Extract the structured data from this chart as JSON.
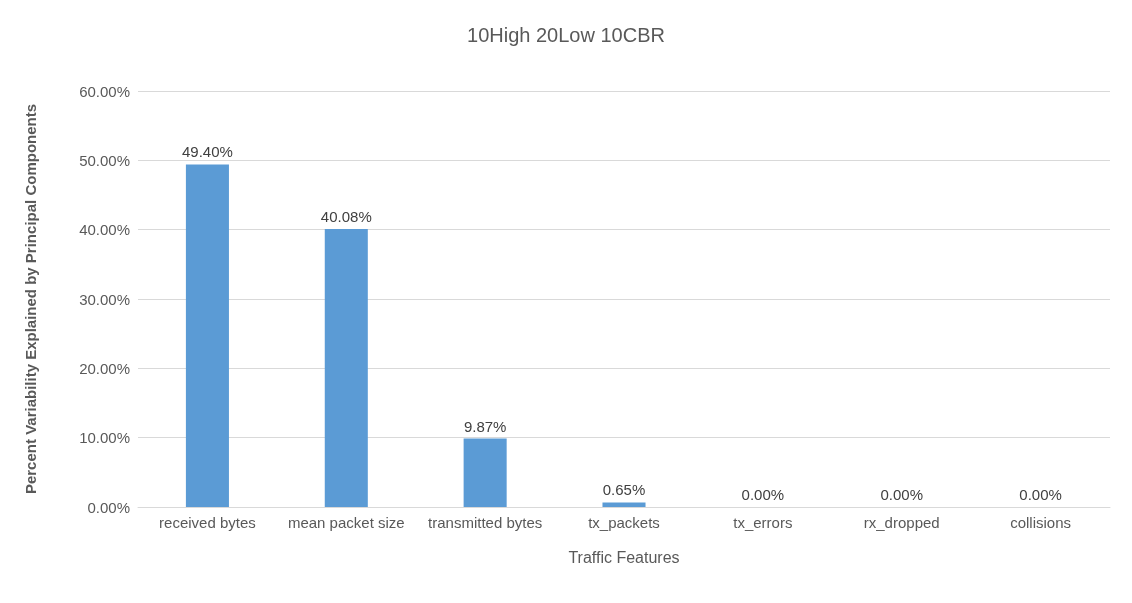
{
  "chart_data": {
    "type": "bar",
    "title": "10High 20Low 10CBR",
    "xlabel": "Traffic Features",
    "ylabel": "Percent Variability Explained by Principal Components",
    "categories": [
      "received bytes",
      "mean packet size",
      "transmitted bytes",
      "tx_packets",
      "tx_errors",
      "rx_dropped",
      "collisions"
    ],
    "values": [
      49.4,
      40.08,
      9.87,
      0.65,
      0,
      0,
      0
    ],
    "value_labels": [
      "49.40%",
      "40.08%",
      "9.87%",
      "0.65%",
      "0.00%",
      "0.00%",
      "0.00%"
    ],
    "color": "#5b9bd5",
    "ylim": [
      0,
      60
    ],
    "yticks": [
      {
        "value": 0,
        "label": "0.00%"
      },
      {
        "value": 10,
        "label": "10.00%"
      },
      {
        "value": 20,
        "label": "20.00%"
      },
      {
        "value": 30,
        "label": "30.00%"
      },
      {
        "value": 40,
        "label": "40.00%"
      },
      {
        "value": 50,
        "label": "50.00%"
      },
      {
        "value": 60,
        "label": "60.00%"
      }
    ],
    "grid": "y"
  }
}
